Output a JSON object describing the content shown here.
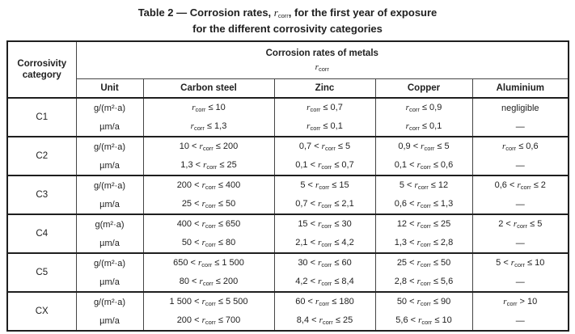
{
  "colors": {
    "background": "#ffffff",
    "text": "#222222",
    "border_heavy": "#1f1f1f",
    "border_light": "#454545"
  },
  "title": {
    "line1_prefix": "Table 2 — Corrosion rates, ",
    "variable_base": "r",
    "variable_sub": "corr",
    "line1_suffix": ", for the first year of exposure",
    "line2": "for the different corrosivity categories"
  },
  "table": {
    "corner_line1": "Corrosivity",
    "corner_line2": "category",
    "group_header": "Corrosion rates of metals",
    "group_variable_base": "r",
    "group_variable_sub": "corr",
    "columns": [
      "Unit",
      "Carbon steel",
      "Zinc",
      "Copper",
      "Aluminium"
    ],
    "rows": [
      {
        "category": "C1",
        "sub_rows": [
          {
            "unit": "g/(m²·a)",
            "values": [
              "r_corr ≤ 10",
              "r_corr ≤ 0,7",
              "r_corr ≤ 0,9",
              "negligible"
            ]
          },
          {
            "unit": "µm/a",
            "values": [
              "r_corr ≤ 1,3",
              "r_corr ≤ 0,1",
              "r_corr ≤ 0,1",
              "—"
            ]
          }
        ]
      },
      {
        "category": "C2",
        "sub_rows": [
          {
            "unit": "g/(m²·a)",
            "values": [
              "10 < r_corr ≤ 200",
              "0,7 < r_corr ≤ 5",
              "0,9 < r_corr ≤ 5",
              "r_corr ≤ 0,6"
            ]
          },
          {
            "unit": "µm/a",
            "values": [
              "1,3 < r_corr ≤ 25",
              "0,1 < r_corr ≤ 0,7",
              "0,1 < r_corr ≤ 0,6",
              "—"
            ]
          }
        ]
      },
      {
        "category": "C3",
        "sub_rows": [
          {
            "unit": "g/(m²·a)",
            "values": [
              "200 < r_corr ≤ 400",
              "5 < r_corr ≤ 15",
              "5 < r_corr ≤ 12",
              "0,6 < r_corr ≤ 2"
            ]
          },
          {
            "unit": "µm/a",
            "values": [
              "25 < r_corr ≤ 50",
              "0,7 < r_corr ≤ 2,1",
              "0,6 < r_corr ≤ 1,3",
              "—"
            ]
          }
        ]
      },
      {
        "category": "C4",
        "sub_rows": [
          {
            "unit": "g(m²·a)",
            "values": [
              "400 < r_corr ≤ 650",
              "15 < r_corr ≤ 30",
              "12 < r_corr ≤ 25",
              "2 < r_corr ≤ 5"
            ]
          },
          {
            "unit": "µm/a",
            "values": [
              "50 < r_corr ≤ 80",
              "2,1 < r_corr ≤ 4,2",
              "1,3 < r_corr ≤ 2,8",
              "—"
            ]
          }
        ]
      },
      {
        "category": "C5",
        "sub_rows": [
          {
            "unit": "g/(m²·a)",
            "values": [
              "650 < r_corr ≤ 1 500",
              "30 < r_corr ≤ 60",
              "25 < r_corr ≤ 50",
              "5 < r_corr ≤ 10"
            ]
          },
          {
            "unit": "µm/a",
            "values": [
              "80 < r_corr ≤ 200",
              "4,2 < r_corr ≤ 8,4",
              "2,8 < r_corr ≤ 5,6",
              "—"
            ]
          }
        ]
      },
      {
        "category": "CX",
        "sub_rows": [
          {
            "unit": "g/(m²·a)",
            "values": [
              "1 500 < r_corr ≤ 5 500",
              "60 < r_corr ≤ 180",
              "50 < r_corr ≤ 90",
              "r_corr > 10"
            ]
          },
          {
            "unit": "µm/a",
            "values": [
              "200 < r_corr ≤ 700",
              "8,4 < r_corr ≤ 25",
              "5,6 < r_corr ≤ 10",
              "—"
            ]
          }
        ]
      }
    ]
  }
}
